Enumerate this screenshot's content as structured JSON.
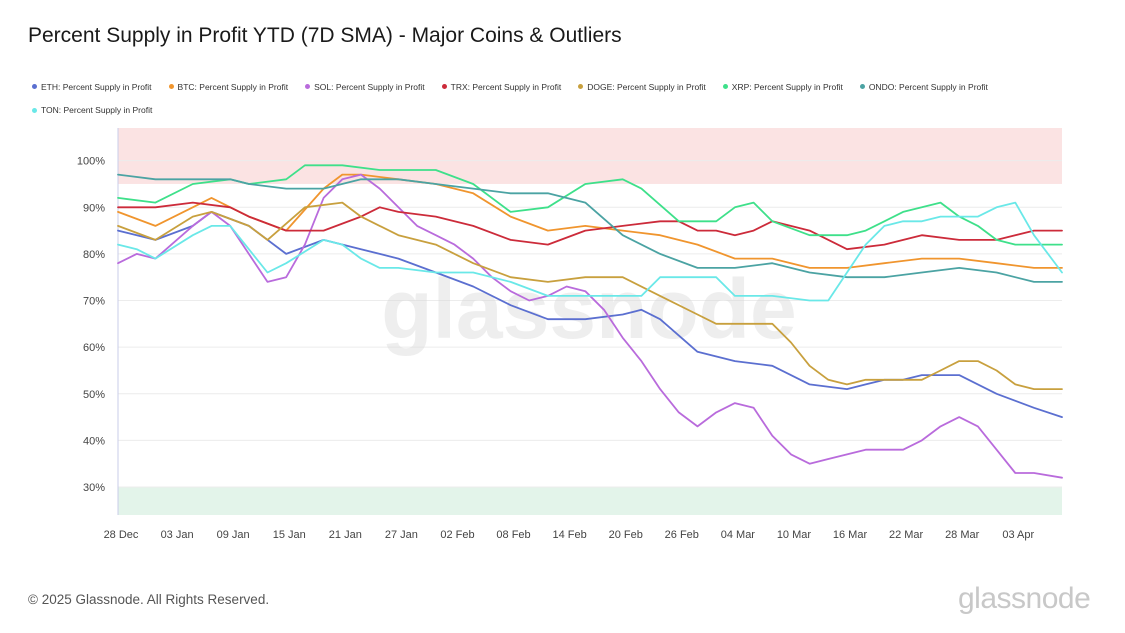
{
  "title": "Percent Supply in Profit YTD (7D SMA) - Major Coins & Outliers",
  "footer": "© 2025 Glassnode. All Rights Reserved.",
  "brand": "glassnode",
  "watermark": "glassnode",
  "colors": {
    "band_top": "#fbe3e3",
    "band_bottom": "#e3f4ea",
    "grid": "#ececec",
    "axis_text": "#444444"
  },
  "chart_data": {
    "type": "line",
    "title": "Percent Supply in Profit YTD (7D SMA) - Major Coins & Outliers",
    "xlabel": "",
    "ylabel": "",
    "x_tick_labels": [
      "28 Dec",
      "03 Jan",
      "09 Jan",
      "15 Jan",
      "21 Jan",
      "27 Jan",
      "02 Feb",
      "08 Feb",
      "14 Feb",
      "20 Feb",
      "26 Feb",
      "04 Mar",
      "10 Mar",
      "16 Mar",
      "22 Mar",
      "28 Mar",
      "03 Apr"
    ],
    "x_tick_days": [
      0,
      6,
      12,
      18,
      24,
      30,
      36,
      42,
      48,
      54,
      60,
      66,
      72,
      78,
      84,
      90,
      96
    ],
    "xlim": [
      0,
      101
    ],
    "ylim": [
      24,
      107
    ],
    "y_ticks": [
      30,
      40,
      50,
      60,
      70,
      80,
      90,
      100
    ],
    "y_tick_labels": [
      "30%",
      "40%",
      "50%",
      "60%",
      "70%",
      "80%",
      "90%",
      "100%"
    ],
    "bands": [
      {
        "from": 95,
        "to": 107,
        "color": "#fbe3e3"
      },
      {
        "from": 24,
        "to": 30,
        "color": "#e3f4ea"
      }
    ],
    "legend_position": "top-left",
    "grid": true,
    "series": [
      {
        "name": "ETH: Percent Supply in Profit",
        "color": "#5b6fd0",
        "x": [
          0,
          4,
          8,
          10,
          14,
          18,
          22,
          26,
          30,
          34,
          38,
          42,
          46,
          50,
          54,
          56,
          58,
          62,
          66,
          70,
          74,
          78,
          80,
          82,
          84,
          86,
          90,
          94,
          98,
          101
        ],
        "y": [
          85,
          83,
          86,
          89,
          86,
          80,
          83,
          81,
          79,
          76,
          73,
          69,
          66,
          66,
          67,
          68,
          66,
          59,
          57,
          56,
          52,
          51,
          52,
          53,
          53,
          54,
          54,
          50,
          47,
          45
        ]
      },
      {
        "name": "BTC: Percent Supply in Profit",
        "color": "#f0952e",
        "x": [
          0,
          4,
          8,
          10,
          14,
          18,
          22,
          24,
          26,
          30,
          34,
          38,
          42,
          46,
          50,
          54,
          58,
          62,
          66,
          70,
          74,
          78,
          82,
          86,
          90,
          94,
          98,
          101
        ],
        "y": [
          89,
          86,
          90,
          92,
          88,
          85,
          94,
          97,
          97,
          96,
          95,
          93,
          88,
          85,
          86,
          85,
          84,
          82,
          79,
          79,
          77,
          77,
          78,
          79,
          79,
          78,
          77,
          77
        ]
      },
      {
        "name": "SOL: Percent Supply in Profit",
        "color": "#b96bdc",
        "x": [
          0,
          2,
          4,
          8,
          10,
          12,
          16,
          18,
          20,
          22,
          24,
          26,
          28,
          30,
          32,
          34,
          36,
          38,
          40,
          42,
          44,
          46,
          48,
          50,
          52,
          54,
          56,
          58,
          60,
          62,
          64,
          66,
          68,
          70,
          72,
          74,
          76,
          78,
          80,
          82,
          84,
          86,
          88,
          90,
          92,
          94,
          96,
          98,
          101
        ],
        "y": [
          78,
          80,
          79,
          86,
          89,
          86,
          74,
          75,
          82,
          92,
          96,
          97,
          94,
          90,
          86,
          84,
          82,
          79,
          75,
          72,
          70,
          71,
          73,
          72,
          68,
          62,
          57,
          51,
          46,
          43,
          46,
          48,
          47,
          41,
          37,
          35,
          36,
          37,
          38,
          38,
          38,
          40,
          43,
          45,
          43,
          38,
          33,
          33,
          32
        ]
      },
      {
        "name": "TRX: Percent Supply in Profit",
        "color": "#cc2b3a",
        "x": [
          0,
          4,
          8,
          12,
          14,
          18,
          22,
          26,
          28,
          30,
          34,
          38,
          42,
          46,
          50,
          54,
          58,
          60,
          62,
          64,
          66,
          68,
          70,
          74,
          78,
          82,
          86,
          90,
          94,
          98,
          101
        ],
        "y": [
          90,
          90,
          91,
          90,
          88,
          85,
          85,
          88,
          90,
          89,
          88,
          86,
          83,
          82,
          85,
          86,
          87,
          87,
          85,
          85,
          84,
          85,
          87,
          85,
          81,
          82,
          84,
          83,
          83,
          85,
          85
        ]
      },
      {
        "name": "DOGE: Percent Supply in Profit",
        "color": "#c8a03e",
        "x": [
          0,
          4,
          8,
          10,
          14,
          16,
          20,
          24,
          26,
          28,
          30,
          34,
          38,
          42,
          46,
          50,
          54,
          58,
          62,
          64,
          66,
          70,
          72,
          74,
          76,
          78,
          80,
          84,
          86,
          88,
          90,
          92,
          94,
          96,
          98,
          101
        ],
        "y": [
          86,
          83,
          88,
          89,
          86,
          83,
          90,
          91,
          88,
          86,
          84,
          82,
          78,
          75,
          74,
          75,
          75,
          71,
          67,
          65,
          65,
          65,
          61,
          56,
          53,
          52,
          53,
          53,
          53,
          55,
          57,
          57,
          55,
          52,
          51,
          51
        ]
      },
      {
        "name": "XRP: Percent Supply in Profit",
        "color": "#3ee08a",
        "x": [
          0,
          4,
          8,
          12,
          14,
          18,
          20,
          24,
          28,
          30,
          34,
          38,
          42,
          46,
          50,
          54,
          56,
          60,
          64,
          66,
          68,
          70,
          74,
          78,
          80,
          82,
          84,
          86,
          88,
          90,
          92,
          94,
          96,
          98,
          101
        ],
        "y": [
          92,
          91,
          95,
          96,
          95,
          96,
          99,
          99,
          98,
          98,
          98,
          95,
          89,
          90,
          95,
          96,
          94,
          87,
          87,
          90,
          91,
          87,
          84,
          84,
          85,
          87,
          89,
          90,
          91,
          88,
          86,
          83,
          82,
          82,
          82
        ]
      },
      {
        "name": "ONDO: Percent Supply in Profit",
        "color": "#4ba3a3",
        "x": [
          0,
          4,
          8,
          12,
          14,
          18,
          22,
          26,
          30,
          34,
          38,
          42,
          46,
          50,
          54,
          58,
          62,
          66,
          70,
          74,
          78,
          82,
          86,
          90,
          94,
          98,
          101
        ],
        "y": [
          97,
          96,
          96,
          96,
          95,
          94,
          94,
          96,
          96,
          95,
          94,
          93,
          93,
          91,
          84,
          80,
          77,
          77,
          78,
          76,
          75,
          75,
          76,
          77,
          76,
          74,
          74
        ]
      },
      {
        "name": "TON: Percent Supply in Profit",
        "color": "#6ae8e8",
        "x": [
          0,
          2,
          4,
          8,
          10,
          12,
          16,
          18,
          22,
          24,
          26,
          28,
          30,
          34,
          38,
          42,
          46,
          50,
          54,
          56,
          58,
          60,
          62,
          64,
          66,
          70,
          74,
          76,
          78,
          80,
          82,
          84,
          86,
          88,
          90,
          92,
          94,
          96,
          98,
          101
        ],
        "y": [
          82,
          81,
          79,
          84,
          86,
          86,
          76,
          78,
          83,
          82,
          79,
          77,
          77,
          76,
          76,
          74,
          71,
          71,
          71,
          71,
          75,
          75,
          75,
          75,
          71,
          71,
          70,
          70,
          76,
          82,
          86,
          87,
          87,
          88,
          88,
          88,
          90,
          91,
          84,
          76
        ]
      }
    ]
  }
}
